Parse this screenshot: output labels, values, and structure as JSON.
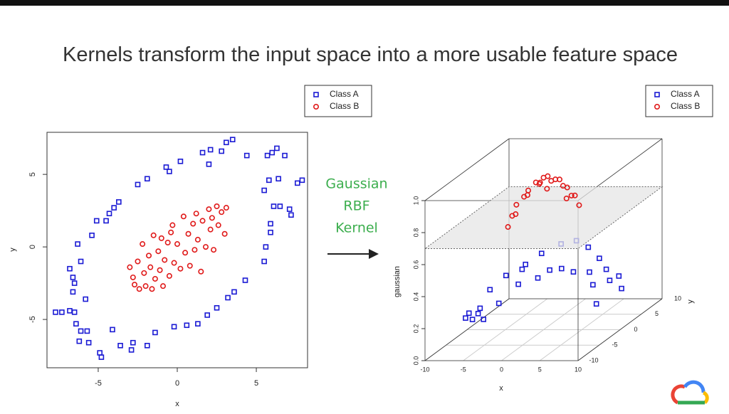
{
  "title": "Kernels transform the input space into a more usable feature space",
  "kernel_label": [
    "Gaussian",
    "RBF",
    "Kernel"
  ],
  "chart_data": [
    {
      "type": "scatter",
      "xlabel": "x",
      "ylabel": "y",
      "xlim": [
        -8.24,
        8.24
      ],
      "ylim": [
        -8.33,
        7.9
      ],
      "xticks": [
        -5,
        0,
        5
      ],
      "yticks": [
        -5,
        0,
        5
      ],
      "series": [
        {
          "name": "Class A",
          "color": "#1a1ad4",
          "marker": "square",
          "x": [
            -7.7,
            -7.3,
            -6.8,
            -6.5,
            -6.4,
            -6.1,
            -6.2,
            -5.7,
            -5.6,
            -4.9,
            -4.8,
            -4.1,
            -3.6,
            -2.9,
            -2.8,
            -1.9,
            -1.4,
            -0.2,
            0.6,
            1.3,
            1.9,
            2.5,
            3.2,
            3.6,
            4.3,
            5.5,
            5.6,
            5.9,
            5.9,
            6.1,
            5.5,
            5.8,
            6.4,
            6.5,
            7.1,
            7.2,
            7.6,
            7.9,
            6.8,
            6.3,
            6.0,
            5.7,
            4.4,
            3.5,
            3.1,
            2.8,
            2.1,
            1.6,
            2.0,
            0.2,
            -0.7,
            -0.5,
            -1.9,
            -2.5,
            -3.7,
            -4.0,
            -4.3,
            -4.5,
            -5.1,
            -5.4,
            -6.3,
            -6.1,
            -6.8,
            -6.6,
            -6.6,
            -6.5,
            -5.8
          ],
          "y": [
            -4.5,
            -4.5,
            -4.4,
            -4.5,
            -5.3,
            -5.8,
            -6.5,
            -5.8,
            -6.6,
            -7.3,
            -7.6,
            -5.7,
            -6.8,
            -7.1,
            -6.6,
            -6.8,
            -5.9,
            -5.5,
            -5.4,
            -5.3,
            -4.7,
            -4.2,
            -3.5,
            -3.1,
            -2.3,
            -1.0,
            0.0,
            1.0,
            1.6,
            2.8,
            3.9,
            4.6,
            4.7,
            2.8,
            2.6,
            2.2,
            4.4,
            4.6,
            6.3,
            6.8,
            6.5,
            6.3,
            6.3,
            7.4,
            7.2,
            6.6,
            6.7,
            6.5,
            5.7,
            5.9,
            5.5,
            5.2,
            4.7,
            4.3,
            3.1,
            2.7,
            2.3,
            1.8,
            1.8,
            0.8,
            0.2,
            -1.0,
            -1.5,
            -2.1,
            -3.1,
            -2.5,
            -3.6
          ]
        },
        {
          "name": "Class B",
          "color": "#e01a1a",
          "marker": "circle",
          "x": [
            -3.0,
            -2.8,
            -2.7,
            -2.5,
            -2.4,
            -2.2,
            -2.1,
            -2.0,
            -1.8,
            -1.7,
            -1.6,
            -1.5,
            -1.4,
            -1.2,
            -1.1,
            -1.0,
            -0.9,
            -0.8,
            -0.6,
            -0.5,
            -0.4,
            -0.2,
            0.0,
            0.2,
            0.4,
            0.5,
            0.7,
            0.8,
            1.0,
            1.1,
            1.3,
            1.5,
            1.6,
            1.8,
            2.0,
            2.1,
            2.3,
            2.5,
            2.6,
            2.8,
            3.0,
            3.1,
            2.2,
            -0.3,
            1.2
          ],
          "y": [
            -1.4,
            -2.1,
            -2.6,
            -1.0,
            -2.9,
            0.2,
            -1.8,
            -2.7,
            -0.6,
            -1.4,
            -2.9,
            0.8,
            -2.2,
            -0.3,
            -1.6,
            0.6,
            -2.7,
            -0.9,
            0.3,
            -2.0,
            1.0,
            -1.1,
            0.2,
            -1.5,
            2.1,
            -0.4,
            0.9,
            -1.3,
            1.6,
            -0.2,
            0.5,
            -1.7,
            1.8,
            0.0,
            2.6,
            1.2,
            -0.2,
            2.8,
            1.5,
            2.4,
            0.9,
            2.7,
            2.0,
            1.5,
            2.3
          ]
        }
      ]
    },
    {
      "type": "scatter3d",
      "xlabel": "x",
      "ylabel": "y",
      "zlabel": "gaussian",
      "xlim": [
        -10,
        10
      ],
      "ylim": [
        -10,
        10
      ],
      "zlim": [
        0,
        1
      ],
      "xticks": [
        -10,
        -5,
        0,
        5,
        10
      ],
      "yticks": [
        -10,
        -5,
        0,
        5,
        10
      ],
      "zticks": [
        {
          "value": 0,
          "label": "0.0"
        },
        {
          "value": 0.2,
          "label": "0.2"
        },
        {
          "value": 0.4,
          "label": "0.4"
        },
        {
          "value": 0.6,
          "label": "0.6"
        },
        {
          "value": 0.8,
          "label": "0.8"
        },
        {
          "value": 1,
          "label": "1.0"
        }
      ],
      "plane": 0.7,
      "series": [
        {
          "name": "Class A",
          "color": "#1a1ad4",
          "marker": "square",
          "x": [
            -8,
            -7,
            -6,
            -7,
            -6,
            -5,
            -4,
            -4,
            -3,
            -2,
            -1,
            0,
            1,
            2,
            2,
            3,
            4,
            5,
            6,
            6,
            6,
            7,
            7,
            8,
            8,
            -8,
            4,
            -5
          ],
          "y": [
            -4,
            -5,
            -6,
            0,
            2,
            -6,
            3,
            -7,
            5,
            -7,
            6,
            -6,
            6,
            -5,
            7,
            -4,
            6,
            -2,
            4,
            0,
            7,
            3,
            -1,
            4,
            -2,
            -1,
            -3,
            4
          ],
          "z": [
            0.15,
            0.2,
            0.18,
            0.25,
            0.3,
            0.25,
            0.35,
            0.2,
            0.38,
            0.3,
            0.42,
            0.4,
            0.44,
            0.42,
            0.38,
            0.45,
            0.33,
            0.4,
            0.3,
            0.36,
            0.2,
            0.25,
            0.3,
            0.18,
            0.2,
            0.12,
            0.44,
            0.3
          ]
        },
        {
          "name": "Class B",
          "color": "#e01a1a",
          "marker": "circle",
          "x": [
            -3,
            -2,
            -3,
            -2,
            -2,
            -1,
            -1,
            0,
            0,
            0,
            1,
            1,
            1,
            2,
            2,
            3,
            2,
            3,
            -1,
            1,
            3,
            -3
          ],
          "y": [
            -2,
            -3,
            -1,
            -1,
            0,
            -2,
            0,
            -1,
            0,
            1,
            0,
            1,
            2,
            1,
            2,
            2,
            3,
            3,
            1,
            -1,
            0,
            -3
          ],
          "z": [
            0.75,
            0.78,
            0.8,
            0.85,
            0.87,
            0.88,
            0.92,
            0.93,
            0.95,
            0.94,
            0.93,
            0.92,
            0.9,
            0.88,
            0.85,
            0.8,
            0.78,
            0.72,
            0.9,
            0.9,
            0.82,
            0.7
          ]
        }
      ]
    }
  ]
}
